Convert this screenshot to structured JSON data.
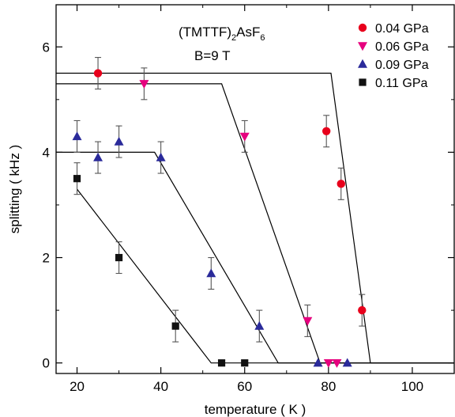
{
  "chart_data": {
    "type": "scatter",
    "title": "",
    "xlabel": "temperature ( K )",
    "ylabel": "splitting ( kHz )",
    "xlim": [
      15,
      110
    ],
    "ylim": [
      -0.2,
      6.8
    ],
    "xticks": [
      20,
      40,
      60,
      80,
      100
    ],
    "yticks": [
      0,
      2,
      4,
      6
    ],
    "x_tick_labels": [
      "20",
      "40",
      "60",
      "80",
      "100"
    ],
    "y_tick_labels": [
      "0",
      "2",
      "4",
      "6"
    ],
    "grid": false,
    "legend_position": "top-right",
    "annotation": {
      "line1_main": "(TMTTF)",
      "line1_sub": "2",
      "line1_mid": "AsF",
      "line1_sub2": "6",
      "line2": "B=9 T"
    },
    "series": [
      {
        "name": "0.04 GPa",
        "marker": "circle",
        "color": "#e8001c",
        "points": [
          {
            "x": 25,
            "y": 5.5,
            "err": 0.3
          },
          {
            "x": 79.5,
            "y": 4.4,
            "err": 0.3
          },
          {
            "x": 83,
            "y": 3.4,
            "err": 0.3
          },
          {
            "x": 88,
            "y": 1.0,
            "err": 0.3
          }
        ],
        "fit": [
          [
            15,
            5.5
          ],
          [
            80.6,
            5.5
          ],
          [
            90,
            0
          ],
          [
            110,
            0
          ]
        ]
      },
      {
        "name": "0.06 GPa",
        "marker": "triangle-down",
        "color": "#e6007e",
        "points": [
          {
            "x": 36,
            "y": 5.3,
            "err": 0.3
          },
          {
            "x": 60,
            "y": 4.3,
            "err": 0.3
          },
          {
            "x": 75,
            "y": 0.8,
            "err": 0.3
          },
          {
            "x": 80,
            "y": 0,
            "err": 0
          },
          {
            "x": 82,
            "y": 0,
            "err": 0
          }
        ],
        "fit": [
          [
            15,
            5.3
          ],
          [
            54.5,
            5.3
          ],
          [
            78,
            0
          ],
          [
            110,
            0
          ]
        ]
      },
      {
        "name": "0.09 GPa",
        "marker": "triangle-up",
        "color": "#2a2a9a",
        "points": [
          {
            "x": 20,
            "y": 4.3,
            "err": 0.3
          },
          {
            "x": 25,
            "y": 3.9,
            "err": 0.3
          },
          {
            "x": 30,
            "y": 4.2,
            "err": 0.3
          },
          {
            "x": 40,
            "y": 3.9,
            "err": 0.3
          },
          {
            "x": 52,
            "y": 1.7,
            "err": 0.3
          },
          {
            "x": 63.5,
            "y": 0.7,
            "err": 0.3
          },
          {
            "x": 77.5,
            "y": 0,
            "err": 0
          },
          {
            "x": 84.5,
            "y": 0,
            "err": 0
          }
        ],
        "fit": [
          [
            15,
            4.0
          ],
          [
            38.5,
            4.0
          ],
          [
            68,
            0
          ],
          [
            110,
            0
          ]
        ]
      },
      {
        "name": "0.11 GPa",
        "marker": "square",
        "color": "#111111",
        "points": [
          {
            "x": 20,
            "y": 3.5,
            "err": 0.3
          },
          {
            "x": 30,
            "y": 2.0,
            "err": 0.3
          },
          {
            "x": 43.5,
            "y": 0.7,
            "err": 0.3
          },
          {
            "x": 54.5,
            "y": 0,
            "err": 0
          },
          {
            "x": 60,
            "y": 0,
            "err": 0
          }
        ],
        "fit": [
          [
            20,
            3.3
          ],
          [
            52,
            0
          ],
          [
            110,
            0
          ]
        ]
      }
    ]
  }
}
